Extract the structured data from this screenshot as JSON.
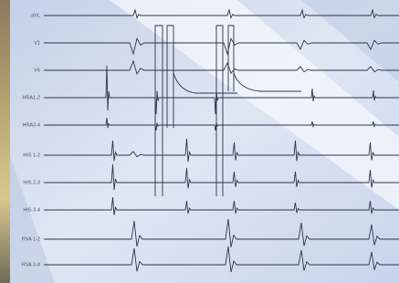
{
  "channels": [
    "aVL",
    "V1",
    "V6",
    "HRA1-2",
    "HRA3-4",
    "HIS 1-2",
    "HIS 2-3",
    "HIS 3-4",
    "RVA 1-2",
    "RVA 3-4"
  ]
}
